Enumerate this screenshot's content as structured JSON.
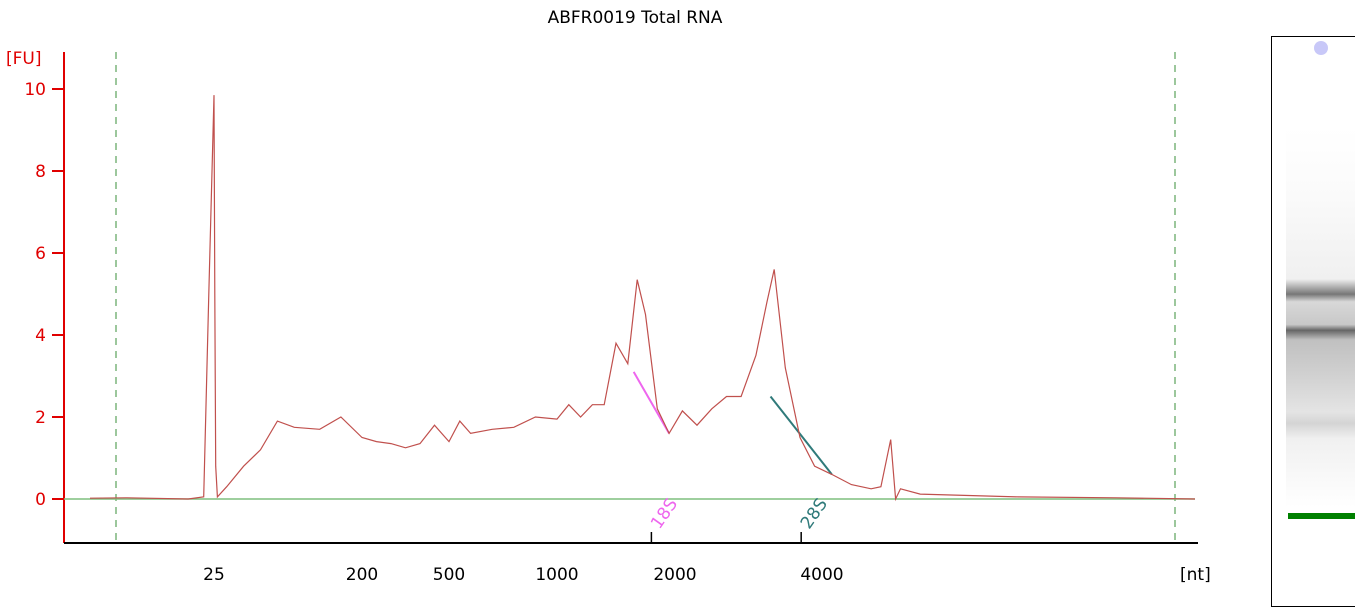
{
  "title": "ABFR0019 Total RNA",
  "colors": {
    "trace": "#c0504d",
    "y_axis": "#e00000",
    "baseline": "#7fbf7f",
    "marker_18s": "#ee66ee",
    "marker_28s": "#2f7a7a",
    "gel_marker": "#008000"
  },
  "chart_data": {
    "type": "line",
    "title": "ABFR0019 Total RNA",
    "ylabel": "[FU]",
    "xlabel": "[nt]",
    "ylim": [
      -1,
      11
    ],
    "y_ticks": [
      0,
      2,
      4,
      6,
      8,
      10
    ],
    "x_tick_labels": [
      "25",
      "200",
      "500",
      "1000",
      "2000",
      "4000"
    ],
    "x_tick_positions_data": [
      25,
      200,
      500,
      1000,
      2000,
      4000
    ],
    "annotations": [
      {
        "label": "18S",
        "start": [
          1650,
          3.1
        ],
        "end": [
          1950,
          1.6
        ]
      },
      {
        "label": "28S",
        "start": [
          3300,
          2.5
        ],
        "end": [
          4100,
          0.6
        ]
      }
    ],
    "series": [
      {
        "values": [
          [
            1,
            0.02
          ],
          [
            8,
            0.03
          ],
          [
            20,
            0.0
          ],
          [
            23,
            0.05
          ],
          [
            24,
            5.0
          ],
          [
            25,
            9.85
          ],
          [
            26,
            5.0
          ],
          [
            27,
            0.8
          ],
          [
            29,
            0.05
          ],
          [
            40,
            0.3
          ],
          [
            60,
            0.8
          ],
          [
            80,
            1.2
          ],
          [
            100,
            1.9
          ],
          [
            120,
            1.75
          ],
          [
            150,
            1.7
          ],
          [
            175,
            2.0
          ],
          [
            200,
            1.5
          ],
          [
            250,
            1.4
          ],
          [
            300,
            1.35
          ],
          [
            350,
            1.25
          ],
          [
            400,
            1.35
          ],
          [
            450,
            1.8
          ],
          [
            500,
            1.4
          ],
          [
            550,
            1.9
          ],
          [
            600,
            1.6
          ],
          [
            700,
            1.7
          ],
          [
            800,
            1.75
          ],
          [
            900,
            2.0
          ],
          [
            1000,
            1.95
          ],
          [
            1100,
            2.3
          ],
          [
            1200,
            2.0
          ],
          [
            1300,
            2.3
          ],
          [
            1400,
            2.3
          ],
          [
            1500,
            3.8
          ],
          [
            1600,
            3.3
          ],
          [
            1680,
            5.35
          ],
          [
            1750,
            4.5
          ],
          [
            1850,
            2.2
          ],
          [
            1950,
            1.6
          ],
          [
            2100,
            2.15
          ],
          [
            2300,
            1.8
          ],
          [
            2500,
            2.2
          ],
          [
            2700,
            2.5
          ],
          [
            2900,
            2.5
          ],
          [
            3100,
            3.5
          ],
          [
            3250,
            4.8
          ],
          [
            3350,
            5.6
          ],
          [
            3500,
            3.2
          ],
          [
            3700,
            1.5
          ],
          [
            3900,
            0.8
          ],
          [
            4100,
            0.6
          ],
          [
            4300,
            0.35
          ],
          [
            4500,
            0.25
          ],
          [
            4600,
            0.3
          ],
          [
            4700,
            1.45
          ],
          [
            4750,
            0.0
          ],
          [
            4800,
            0.25
          ],
          [
            5000,
            0.12
          ],
          [
            6000,
            0.05
          ],
          [
            7000,
            0.03
          ],
          [
            7800,
            0.0
          ]
        ]
      }
    ]
  },
  "gel": {
    "dot_color": "#c8c8f8"
  }
}
